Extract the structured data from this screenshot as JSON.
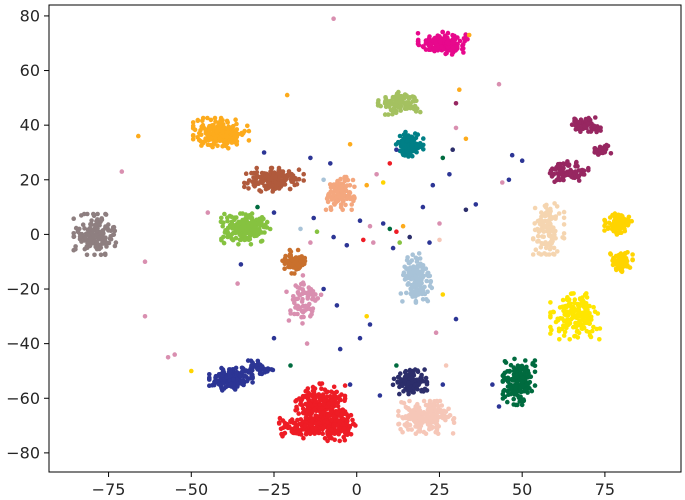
{
  "chart_data": {
    "type": "scatter",
    "title": "",
    "xlabel": "",
    "ylabel": "",
    "xlim": [
      -93,
      98
    ],
    "ylim": [
      -87,
      84
    ],
    "grid": false,
    "legend": "none",
    "x_ticks": [
      -75,
      -50,
      -25,
      0,
      25,
      50,
      75
    ],
    "y_ticks": [
      -80,
      -60,
      -40,
      -20,
      0,
      20,
      40,
      60,
      80
    ],
    "x_tick_labels": [
      "−75",
      "−50",
      "−25",
      "0",
      "25",
      "50",
      "75"
    ],
    "y_tick_labels": [
      "−80",
      "−60",
      "−40",
      "−20",
      "0",
      "20",
      "40",
      "60",
      "80"
    ],
    "clusters": [
      {
        "color": "#e7088c",
        "center": [
          26,
          70
        ],
        "spread": [
          4,
          2.2
        ],
        "count": 160
      },
      {
        "color": "#a4c160",
        "center": [
          13,
          48
        ],
        "spread": [
          3.5,
          2.2
        ],
        "count": 110
      },
      {
        "color": "#fdab1c",
        "center": [
          -41,
          37
        ],
        "spread": [
          4.5,
          3
        ],
        "count": 220
      },
      {
        "color": "#007f86",
        "center": [
          16,
          33
        ],
        "spread": [
          2.2,
          2.4
        ],
        "count": 110
      },
      {
        "color": "#972761",
        "center": [
          69,
          40
        ],
        "spread": [
          2.6,
          1.5
        ],
        "count": 55
      },
      {
        "color": "#972761",
        "center": [
          74,
          31
        ],
        "spread": [
          1.5,
          1.3
        ],
        "count": 35
      },
      {
        "color": "#972761",
        "center": [
          64,
          23
        ],
        "spread": [
          3.2,
          2
        ],
        "count": 90
      },
      {
        "color": "#b05a3c",
        "center": [
          -25,
          20
        ],
        "spread": [
          4.8,
          2.3
        ],
        "count": 170
      },
      {
        "color": "#f4a77e",
        "center": [
          -5,
          15
        ],
        "spread": [
          2.3,
          3.2
        ],
        "count": 120
      },
      {
        "color": "#8e7f80",
        "center": [
          -79,
          0
        ],
        "spread": [
          3.5,
          4
        ],
        "count": 150
      },
      {
        "color": "#86c240",
        "center": [
          -34,
          2
        ],
        "spread": [
          4.2,
          3
        ],
        "count": 200
      },
      {
        "color": "#f5d5b0",
        "center": [
          58,
          2
        ],
        "spread": [
          2.5,
          5
        ],
        "count": 110
      },
      {
        "color": "#ffd400",
        "center": [
          79,
          4
        ],
        "spread": [
          2.2,
          2.3
        ],
        "count": 80
      },
      {
        "color": "#ffd400",
        "center": [
          80,
          -10
        ],
        "spread": [
          1.8,
          2.2
        ],
        "count": 70
      },
      {
        "color": "#c9702d",
        "center": [
          -19,
          -10
        ],
        "spread": [
          2.4,
          2.3
        ],
        "count": 75
      },
      {
        "color": "#a8c3d8",
        "center": [
          18,
          -17
        ],
        "spread": [
          2.5,
          5.5
        ],
        "count": 140
      },
      {
        "color": "#d98fb0",
        "center": [
          -16,
          -24
        ],
        "spread": [
          2.8,
          5
        ],
        "count": 70
      },
      {
        "color": "#ffe600",
        "center": [
          66,
          -30
        ],
        "spread": [
          4,
          4.5
        ],
        "count": 180
      },
      {
        "color": "#2c3595",
        "center": [
          -38,
          -53
        ],
        "spread": [
          3.5,
          2.2
        ],
        "count": 150
      },
      {
        "color": "#2c3595",
        "center": [
          -30,
          -49
        ],
        "spread": [
          2.5,
          1.5
        ],
        "count": 50
      },
      {
        "color": "#2c2e6b",
        "center": [
          16,
          -54
        ],
        "spread": [
          2.8,
          2.4
        ],
        "count": 120
      },
      {
        "color": "#006b3f",
        "center": [
          49,
          -54
        ],
        "spread": [
          2.6,
          4.5
        ],
        "count": 170
      },
      {
        "color": "#ee1c25",
        "center": [
          -11,
          -63
        ],
        "spread": [
          4,
          4.5
        ],
        "count": 260
      },
      {
        "color": "#ee1c25",
        "center": [
          -15,
          -70
        ],
        "spread": [
          4.5,
          2.5
        ],
        "count": 150
      },
      {
        "color": "#ee1c25",
        "center": [
          -6,
          -70
        ],
        "spread": [
          3,
          3
        ],
        "count": 120
      },
      {
        "color": "#f6c7b8",
        "center": [
          21,
          -67
        ],
        "spread": [
          4.5,
          3.2
        ],
        "count": 190
      }
    ],
    "outliers": [
      {
        "x": -7,
        "y": 79,
        "color": "#d98fb0"
      },
      {
        "x": -21,
        "y": 51,
        "color": "#fdab1c"
      },
      {
        "x": -66,
        "y": 36,
        "color": "#fdab1c"
      },
      {
        "x": -71,
        "y": 23,
        "color": "#d98fb0"
      },
      {
        "x": -64,
        "y": -10,
        "color": "#d98fb0"
      },
      {
        "x": -64,
        "y": -30,
        "color": "#d98fb0"
      },
      {
        "x": -55,
        "y": -44,
        "color": "#d98fb0"
      },
      {
        "x": -57,
        "y": -45,
        "color": "#d98fb0"
      },
      {
        "x": 34,
        "y": 73,
        "color": "#fdab1c"
      },
      {
        "x": 31,
        "y": 53,
        "color": "#fdab1c"
      },
      {
        "x": 43,
        "y": 55,
        "color": "#d98fb0"
      },
      {
        "x": 30,
        "y": 48,
        "color": "#972761"
      },
      {
        "x": 30,
        "y": 39,
        "color": "#d98fb0"
      },
      {
        "x": 33,
        "y": 35,
        "color": "#fdab1c"
      },
      {
        "x": 47,
        "y": 29,
        "color": "#2c3595"
      },
      {
        "x": 50,
        "y": 27,
        "color": "#2c3595"
      },
      {
        "x": 46,
        "y": 20,
        "color": "#2c3595"
      },
      {
        "x": 44,
        "y": 19,
        "color": "#d98fb0"
      },
      {
        "x": 29,
        "y": 31,
        "color": "#2c2e6b"
      },
      {
        "x": 26,
        "y": 28,
        "color": "#006b3f"
      },
      {
        "x": 28,
        "y": 22,
        "color": "#2c3595"
      },
      {
        "x": 23,
        "y": 18,
        "color": "#2c3595"
      },
      {
        "x": 36,
        "y": 11,
        "color": "#2c3595"
      },
      {
        "x": 33,
        "y": 9,
        "color": "#2c2e6b"
      },
      {
        "x": 12,
        "y": 31,
        "color": "#2c3595"
      },
      {
        "x": 10,
        "y": 26,
        "color": "#ee1c25"
      },
      {
        "x": 6,
        "y": 22,
        "color": "#d98fb0"
      },
      {
        "x": 8,
        "y": 19,
        "color": "#ffd400"
      },
      {
        "x": 3,
        "y": 18,
        "color": "#fdab1c"
      },
      {
        "x": -8,
        "y": 26,
        "color": "#2c3595"
      },
      {
        "x": -14,
        "y": 28,
        "color": "#2c3595"
      },
      {
        "x": -28,
        "y": 30,
        "color": "#2c3595"
      },
      {
        "x": -10,
        "y": 20,
        "color": "#a8c3d8"
      },
      {
        "x": 1,
        "y": 5,
        "color": "#2c3595"
      },
      {
        "x": 4,
        "y": 3,
        "color": "#d98fb0"
      },
      {
        "x": 8,
        "y": 4,
        "color": "#2c3595"
      },
      {
        "x": 10,
        "y": 2,
        "color": "#006b3f"
      },
      {
        "x": 12,
        "y": 1,
        "color": "#ee1c25"
      },
      {
        "x": 14,
        "y": 3,
        "color": "#fdab1c"
      },
      {
        "x": 13,
        "y": -3,
        "color": "#86c240"
      },
      {
        "x": 16,
        "y": -1,
        "color": "#2c2e6b"
      },
      {
        "x": 11,
        "y": -5,
        "color": "#2c3595"
      },
      {
        "x": 5,
        "y": -3,
        "color": "#d98fb0"
      },
      {
        "x": 2,
        "y": -2,
        "color": "#ee1c25"
      },
      {
        "x": -3,
        "y": -4,
        "color": "#2c3595"
      },
      {
        "x": -7,
        "y": -1,
        "color": "#2c3595"
      },
      {
        "x": -12,
        "y": 1,
        "color": "#86c240"
      },
      {
        "x": -14,
        "y": -3,
        "color": "#d98fb0"
      },
      {
        "x": -13,
        "y": 6,
        "color": "#2c3595"
      },
      {
        "x": -17,
        "y": 2,
        "color": "#a8c3d8"
      },
      {
        "x": 25,
        "y": 4,
        "color": "#d98fb0"
      },
      {
        "x": 22,
        "y": -3,
        "color": "#2c3595"
      },
      {
        "x": 25,
        "y": -2,
        "color": "#f6c7b8"
      },
      {
        "x": 26,
        "y": -22,
        "color": "#ffd400"
      },
      {
        "x": 30,
        "y": -31,
        "color": "#2c3595"
      },
      {
        "x": 24,
        "y": -36,
        "color": "#d98fb0"
      },
      {
        "x": 3,
        "y": -30,
        "color": "#ffd400"
      },
      {
        "x": 4,
        "y": -33,
        "color": "#2c3595"
      },
      {
        "x": 1,
        "y": -38,
        "color": "#2c3595"
      },
      {
        "x": -5,
        "y": -42,
        "color": "#2c3595"
      },
      {
        "x": -6,
        "y": -26,
        "color": "#2c3595"
      },
      {
        "x": -10,
        "y": -20,
        "color": "#2c3595"
      },
      {
        "x": -15,
        "y": -40,
        "color": "#d98fb0"
      },
      {
        "x": -25,
        "y": -38,
        "color": "#2c3595"
      },
      {
        "x": -20,
        "y": -48,
        "color": "#006b3f"
      },
      {
        "x": -36,
        "y": -18,
        "color": "#d98fb0"
      },
      {
        "x": -35,
        "y": -11,
        "color": "#2c3595"
      },
      {
        "x": -30,
        "y": 10,
        "color": "#006b3f"
      },
      {
        "x": -25,
        "y": 8,
        "color": "#2c3595"
      },
      {
        "x": -45,
        "y": 8,
        "color": "#d98fb0"
      },
      {
        "x": 41,
        "y": -55,
        "color": "#2c3595"
      },
      {
        "x": 43,
        "y": -63,
        "color": "#2c3595"
      },
      {
        "x": 26,
        "y": -55,
        "color": "#2c3595"
      },
      {
        "x": 27,
        "y": -48,
        "color": "#f6c7b8"
      },
      {
        "x": 12,
        "y": -48,
        "color": "#006b3f"
      },
      {
        "x": -2,
        "y": -55,
        "color": "#2c3595"
      },
      {
        "x": 7,
        "y": -59,
        "color": "#2c3595"
      },
      {
        "x": -50,
        "y": -50,
        "color": "#ffd400"
      },
      {
        "x": 20,
        "y": 10,
        "color": "#2c3595"
      },
      {
        "x": -2,
        "y": 33,
        "color": "#fdab1c"
      }
    ]
  }
}
